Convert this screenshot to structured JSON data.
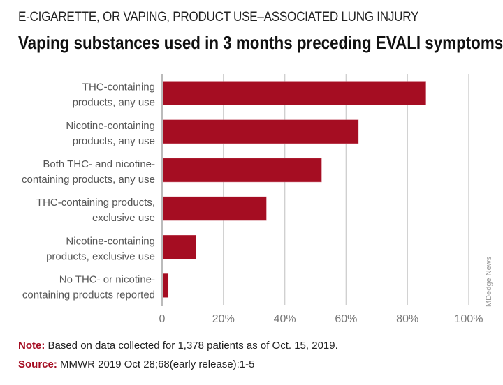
{
  "header": {
    "kicker": "E-CIGARETTE, OR VAPING, PRODUCT USE–ASSOCIATED LUNG INJURY",
    "title": "Vaping substances used in 3 months preceding EVALI symptoms"
  },
  "chart_data": {
    "type": "bar",
    "orientation": "horizontal",
    "title": "Vaping substances used in 3 months preceding EVALI symptoms",
    "categories": [
      [
        "THC-containing",
        "products, any use"
      ],
      [
        "Nicotine-containing",
        "products, any use"
      ],
      [
        "Both THC- and nicotine-",
        "containing products, any use"
      ],
      [
        "THC-containing products,",
        "exclusive use"
      ],
      [
        "Nicotine-containing",
        "products, exclusive use"
      ],
      [
        "No THC- or nicotine-",
        "containing products reported"
      ]
    ],
    "values": [
      86,
      64,
      52,
      34,
      11,
      2
    ],
    "xlim": [
      0,
      100
    ],
    "xticks": [
      0,
      20,
      40,
      60,
      80,
      100
    ],
    "xtick_labels": [
      "0",
      "20%",
      "40%",
      "60%",
      "80%",
      "100%"
    ],
    "grid": true,
    "bar_color": "#a50d22"
  },
  "footer": {
    "note_label": "Note:",
    "note_text": " Based on data collected for 1,378 patients as of Oct. 15, 2019.",
    "source_label": "Source:",
    "source_text": " MMWR 2019 Oct 28;68(early release):1-5"
  },
  "credit": "MDedge News"
}
